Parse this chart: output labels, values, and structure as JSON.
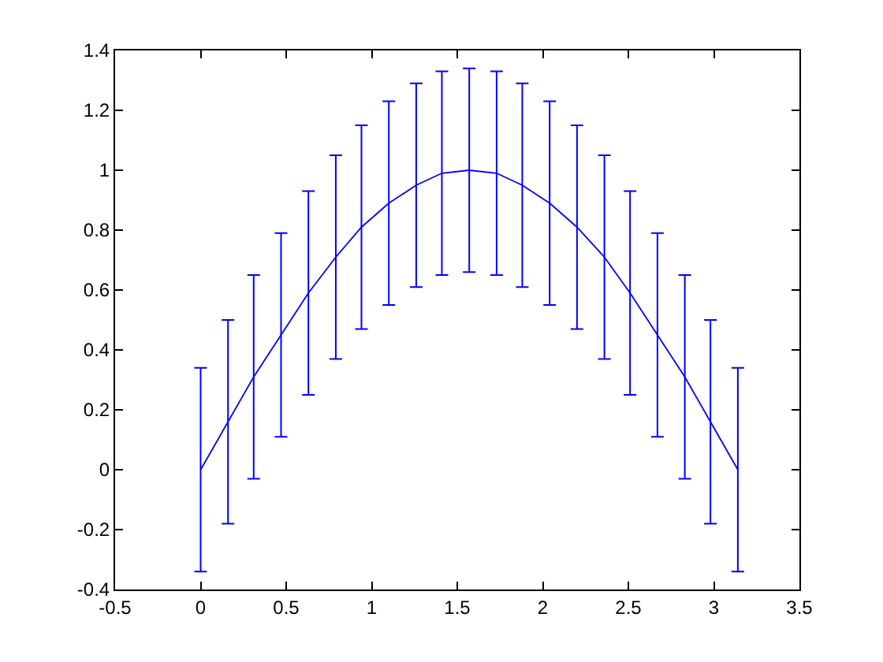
{
  "chart_data": {
    "type": "line",
    "x": [
      0,
      0.16,
      0.31,
      0.47,
      0.63,
      0.79,
      0.94,
      1.1,
      1.26,
      1.41,
      1.57,
      1.73,
      1.88,
      2.04,
      2.2,
      2.36,
      2.51,
      2.67,
      2.83,
      2.98,
      3.14
    ],
    "series": [
      {
        "color": "#0000ff",
        "values": [
          0,
          0.16,
          0.31,
          0.45,
          0.59,
          0.71,
          0.81,
          0.89,
          0.95,
          0.99,
          1,
          0.99,
          0.95,
          0.89,
          0.81,
          0.71,
          0.59,
          0.45,
          0.31,
          0.16,
          0
        ],
        "errors": [
          0.34,
          0.34,
          0.34,
          0.34,
          0.34,
          0.34,
          0.34,
          0.34,
          0.34,
          0.34,
          0.34,
          0.34,
          0.34,
          0.34,
          0.34,
          0.34,
          0.34,
          0.34,
          0.34,
          0.34,
          0.34
        ]
      }
    ],
    "xlim": [
      -0.5,
      3.5
    ],
    "xticks": [
      -0.5,
      0,
      0.5,
      1,
      1.5,
      2,
      2.5,
      3,
      3.5
    ],
    "ylim": [
      -0.4,
      1.4
    ],
    "yticks": [
      -0.4,
      -0.2,
      0,
      0.2,
      0.4,
      0.6,
      0.8,
      1,
      1.2,
      1.4
    ],
    "grid": false,
    "line_style": "solid"
  }
}
